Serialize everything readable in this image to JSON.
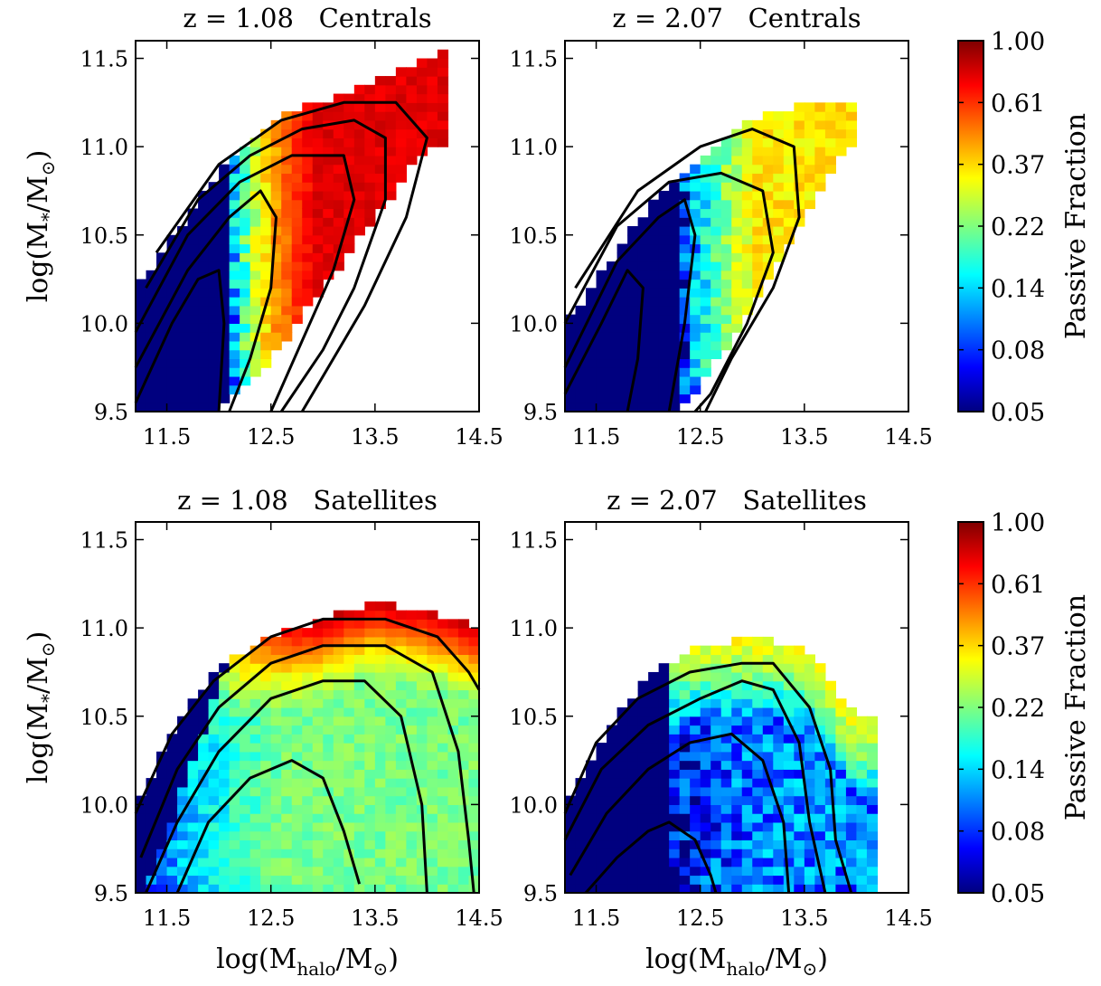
{
  "figure": {
    "colorbar_label": "Passive Fraction",
    "colorbar_ticks": [
      "1.00",
      "0.61",
      "0.37",
      "0.22",
      "0.14",
      "0.08",
      "0.05"
    ],
    "xlabel_main": "log(M",
    "xlabel_sub": "halo",
    "xlabel_mid": "/M",
    "xlabel_sub2": "⊙",
    "xlabel_end": ")",
    "ylabel_main": "log(M",
    "ylabel_sub": "*",
    "ylabel_mid": "/M",
    "ylabel_sub2": "⊙",
    "ylabel_end": ")",
    "colormap": [
      "#00007f",
      "#0000ff",
      "#007fff",
      "#00ffff",
      "#7fff7f",
      "#ffff00",
      "#ff7f00",
      "#ff0000",
      "#7f0000"
    ]
  },
  "chart_data": [
    {
      "type": "heatmap",
      "title": "z = 1.08   Centrals",
      "xlim": [
        11.2,
        14.5
      ],
      "ylim": [
        9.5,
        11.6
      ],
      "xticks": [
        "11.5",
        "12.5",
        "13.5",
        "14.5"
      ],
      "yticks": [
        "9.5",
        "10.0",
        "10.5",
        "11.0",
        "11.5"
      ],
      "scale": "log",
      "colorbar_range": [
        0.05,
        1.0
      ],
      "ridge": {
        "x": [
          11.2,
          12.0,
          12.6,
          13.2,
          13.7,
          14.2
        ],
        "y": [
          9.8,
          10.2,
          10.6,
          10.95,
          11.2,
          11.4
        ]
      },
      "upper_edge": {
        "x": [
          11.2,
          11.7,
          12.1,
          12.6,
          13.2,
          13.8,
          14.2
        ],
        "y": [
          10.2,
          10.6,
          10.95,
          11.2,
          11.3,
          11.45,
          11.55
        ]
      },
      "lower_edge": {
        "x": [
          12.0,
          12.5,
          13.0,
          13.5,
          14.0
        ],
        "y": [
          9.5,
          9.8,
          10.2,
          10.6,
          11.0
        ]
      },
      "transition_x": 12.15,
      "max_fraction": 0.75
    },
    {
      "type": "heatmap",
      "title": "z = 2.07   Centrals",
      "xlim": [
        11.2,
        14.5
      ],
      "ylim": [
        9.5,
        11.6
      ],
      "xticks": [
        "11.5",
        "12.5",
        "13.5",
        "14.5"
      ],
      "yticks": [
        "9.5",
        "10.0",
        "10.5",
        "11.0",
        "11.5"
      ],
      "scale": "log",
      "colorbar_range": [
        0.05,
        1.0
      ],
      "upper_edge": {
        "x": [
          11.2,
          11.8,
          12.2,
          12.6,
          13.0,
          13.5,
          13.9
        ],
        "y": [
          10.0,
          10.5,
          10.8,
          11.0,
          11.15,
          11.25,
          11.25
        ]
      },
      "lower_edge": {
        "x": [
          12.3,
          12.8,
          13.2,
          13.6,
          13.9
        ],
        "y": [
          9.5,
          9.9,
          10.3,
          10.7,
          11.0
        ]
      },
      "transition_x": 12.3,
      "max_fraction": 0.35
    },
    {
      "type": "heatmap",
      "title": "z = 1.08   Satellites",
      "xlim": [
        11.2,
        14.5
      ],
      "ylim": [
        9.5,
        11.6
      ],
      "xticks": [
        "11.5",
        "12.5",
        "13.5",
        "14.5"
      ],
      "yticks": [
        "9.5",
        "10.0",
        "10.5",
        "11.0",
        "11.5"
      ],
      "scale": "log",
      "colorbar_range": [
        0.05,
        1.0
      ],
      "upper_edge": {
        "x": [
          11.2,
          11.6,
          12.0,
          12.5,
          13.0,
          13.5,
          14.0,
          14.5
        ],
        "y": [
          10.0,
          10.45,
          10.8,
          10.95,
          11.05,
          11.15,
          11.1,
          11.0
        ]
      },
      "max_fraction": 0.75
    },
    {
      "type": "heatmap",
      "title": "z = 2.07   Satellites",
      "xlim": [
        11.2,
        14.5
      ],
      "ylim": [
        9.5,
        11.6
      ],
      "xticks": [
        "11.5",
        "12.5",
        "13.5",
        "14.5"
      ],
      "yticks": [
        "9.5",
        "10.0",
        "10.5",
        "11.0",
        "11.5"
      ],
      "scale": "log",
      "colorbar_range": [
        0.05,
        1.0
      ],
      "upper_edge": {
        "x": [
          11.2,
          11.6,
          12.0,
          12.5,
          13.0,
          13.5,
          14.0
        ],
        "y": [
          10.0,
          10.4,
          10.75,
          10.9,
          10.95,
          10.9,
          10.5
        ]
      },
      "xmax": 14.15,
      "max_fraction": 0.3
    }
  ]
}
